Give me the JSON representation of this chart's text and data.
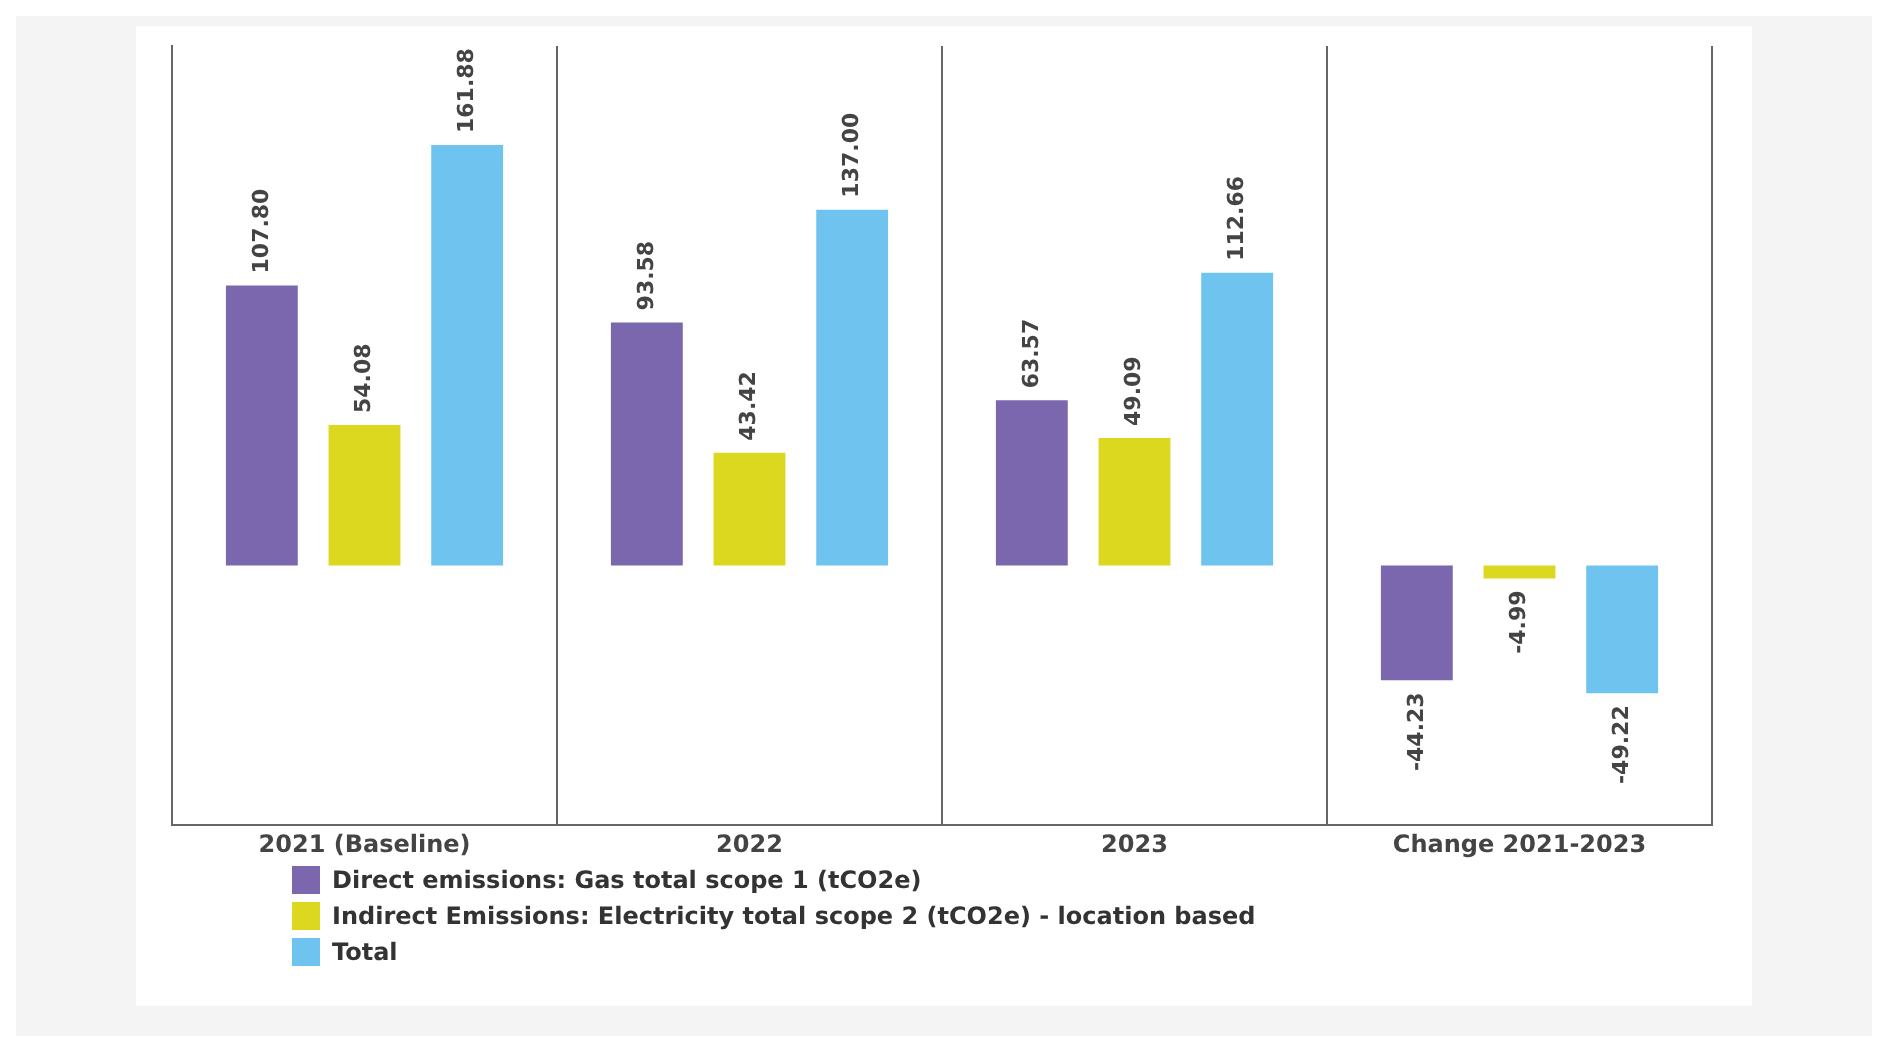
{
  "chart_data": {
    "type": "bar",
    "categories": [
      "2021 (Baseline)",
      "2022",
      "2023",
      "Change 2021-2023"
    ],
    "series": [
      {
        "name": "Direct emissions: Gas total scope 1 (tCO2e)",
        "color": "#7a67ae",
        "values": [
          107.8,
          93.58,
          63.57,
          -44.23
        ],
        "value_labels": [
          "107.80",
          "93.58",
          "63.57",
          "-44.23"
        ]
      },
      {
        "name": "Indirect Emissions: Electricity total scope 2 (tCO2e) - location based",
        "color": "#dcd81f",
        "values": [
          54.08,
          43.42,
          49.09,
          -4.99
        ],
        "value_labels": [
          "54.08",
          "43.42",
          "49.09",
          "-4.99"
        ]
      },
      {
        "name": "Total",
        "color": "#6ec4ee",
        "values": [
          161.88,
          137.0,
          112.66,
          -49.22
        ],
        "value_labels": [
          "161.88",
          "137.00",
          "112.66",
          "-49.22"
        ]
      }
    ],
    "grid": "x",
    "legend": "bottom left"
  }
}
